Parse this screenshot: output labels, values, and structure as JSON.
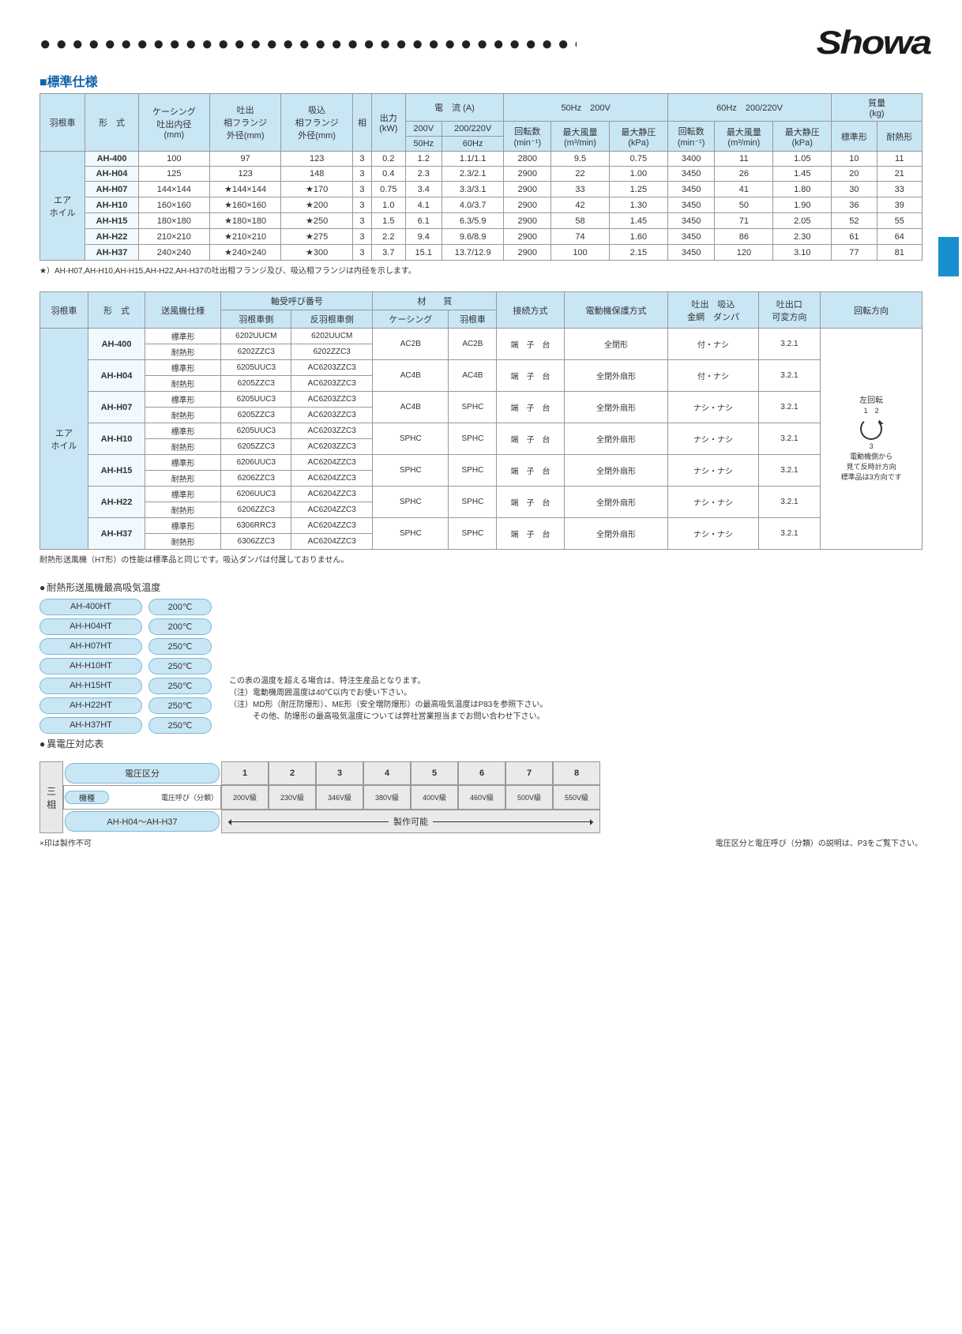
{
  "brand": "Showa",
  "section_title": "標準仕様",
  "table1": {
    "headers": {
      "rotor": "羽根車",
      "model": "形　式",
      "casing": "ケーシング\n吐出内径\n(mm)",
      "discharge_flange": "吐出\n相フランジ\n外径(mm)",
      "suction_flange": "吸込\n相フランジ\n外径(mm)",
      "phase": "相",
      "output": "出力\n(kW)",
      "current": "電　流 (A)",
      "current_200v": "200V",
      "current_200_220v": "200/220V",
      "freq50": "50Hz　200V",
      "freq60": "60Hz　200/220V",
      "rpm": "回転数\n(min⁻¹)",
      "max_air": "最大風量\n(m³/min)",
      "max_sp": "最大静圧\n(kPa)",
      "mass": "質量\n(kg)",
      "mass_std": "標準形",
      "mass_heat": "耐熱形",
      "hz50": "50Hz",
      "hz60": "60Hz"
    },
    "category": "エア\nホイル",
    "rows": [
      {
        "model": "AH-400",
        "casing": "100",
        "df": "97",
        "sf": "123",
        "ph": "3",
        "kw": "0.2",
        "a50": "1.2",
        "a60": "1.1/1.1",
        "r50": "2800",
        "q50": "9.5",
        "p50": "0.75",
        "r60": "3400",
        "q60": "11",
        "p60": "1.05",
        "ms": "10",
        "mh": "11"
      },
      {
        "model": "AH-H04",
        "casing": "125",
        "df": "123",
        "sf": "148",
        "ph": "3",
        "kw": "0.4",
        "a50": "2.3",
        "a60": "2.3/2.1",
        "r50": "2900",
        "q50": "22",
        "p50": "1.00",
        "r60": "3450",
        "q60": "26",
        "p60": "1.45",
        "ms": "20",
        "mh": "21"
      },
      {
        "model": "AH-H07",
        "casing": "144×144",
        "df": "★144×144",
        "sf": "★170",
        "ph": "3",
        "kw": "0.75",
        "a50": "3.4",
        "a60": "3.3/3.1",
        "r50": "2900",
        "q50": "33",
        "p50": "1.25",
        "r60": "3450",
        "q60": "41",
        "p60": "1.80",
        "ms": "30",
        "mh": "33"
      },
      {
        "model": "AH-H10",
        "casing": "160×160",
        "df": "★160×160",
        "sf": "★200",
        "ph": "3",
        "kw": "1.0",
        "a50": "4.1",
        "a60": "4.0/3.7",
        "r50": "2900",
        "q50": "42",
        "p50": "1.30",
        "r60": "3450",
        "q60": "50",
        "p60": "1.90",
        "ms": "36",
        "mh": "39"
      },
      {
        "model": "AH-H15",
        "casing": "180×180",
        "df": "★180×180",
        "sf": "★250",
        "ph": "3",
        "kw": "1.5",
        "a50": "6.1",
        "a60": "6.3/5.9",
        "r50": "2900",
        "q50": "58",
        "p50": "1.45",
        "r60": "3450",
        "q60": "71",
        "p60": "2.05",
        "ms": "52",
        "mh": "55"
      },
      {
        "model": "AH-H22",
        "casing": "210×210",
        "df": "★210×210",
        "sf": "★275",
        "ph": "3",
        "kw": "2.2",
        "a50": "9.4",
        "a60": "9.6/8.9",
        "r50": "2900",
        "q50": "74",
        "p50": "1.60",
        "r60": "3450",
        "q60": "86",
        "p60": "2.30",
        "ms": "61",
        "mh": "64"
      },
      {
        "model": "AH-H37",
        "casing": "240×240",
        "df": "★240×240",
        "sf": "★300",
        "ph": "3",
        "kw": "3.7",
        "a50": "15.1",
        "a60": "13.7/12.9",
        "r50": "2900",
        "q50": "100",
        "p50": "2.15",
        "r60": "3450",
        "q60": "120",
        "p60": "3.10",
        "ms": "77",
        "mh": "81"
      }
    ],
    "note": "★）AH-H07,AH-H10,AH-H15,AH-H22,AH-H37の吐出相フランジ及び、吸込相フランジは内径を示します。"
  },
  "table2": {
    "headers": {
      "rotor": "羽根車",
      "model": "形　式",
      "fan_spec": "送風機仕様",
      "bearing": "軸受呼び番号",
      "bearing_rotor": "羽根車側",
      "bearing_anti": "反羽根車側",
      "material": "材　　質",
      "mat_casing": "ケーシング",
      "mat_rotor": "羽根車",
      "conn": "接続方式",
      "protect": "電動機保護方式",
      "damper": "吐出　吸込\n金網　ダンパ",
      "direction": "吐出口\n可変方向",
      "rotation": "回転方向"
    },
    "category": "エア\nホイル",
    "spec_std": "標準形",
    "spec_heat": "耐熱形",
    "rows": [
      {
        "model": "AH-400",
        "b1s": "6202UUCM",
        "b2s": "6202UUCM",
        "b1h": "6202ZZC3",
        "b2h": "6202ZZC3",
        "mc": "AC2B",
        "mr": "AC2B",
        "conn": "端　子　台",
        "prot": "全閉形",
        "damp": "付・ナシ",
        "dir": "3.2.1"
      },
      {
        "model": "AH-H04",
        "b1s": "6205UUC3",
        "b2s": "AC6203ZZC3",
        "b1h": "6205ZZC3",
        "b2h": "AC6203ZZC3",
        "mc": "AC4B",
        "mr": "AC4B",
        "conn": "端　子　台",
        "prot": "全閉外扇形",
        "damp": "付・ナシ",
        "dir": "3.2.1"
      },
      {
        "model": "AH-H07",
        "b1s": "6205UUC3",
        "b2s": "AC6203ZZC3",
        "b1h": "6205ZZC3",
        "b2h": "AC6203ZZC3",
        "mc": "AC4B",
        "mr": "SPHC",
        "conn": "端　子　台",
        "prot": "全閉外扇形",
        "damp": "ナシ・ナシ",
        "dir": "3.2.1"
      },
      {
        "model": "AH-H10",
        "b1s": "6205UUC3",
        "b2s": "AC6203ZZC3",
        "b1h": "6205ZZC3",
        "b2h": "AC6203ZZC3",
        "mc": "SPHC",
        "mr": "SPHC",
        "conn": "端　子　台",
        "prot": "全閉外扇形",
        "damp": "ナシ・ナシ",
        "dir": "3.2.1"
      },
      {
        "model": "AH-H15",
        "b1s": "6206UUC3",
        "b2s": "AC6204ZZC3",
        "b1h": "6206ZZC3",
        "b2h": "AC6204ZZC3",
        "mc": "SPHC",
        "mr": "SPHC",
        "conn": "端　子　台",
        "prot": "全閉外扇形",
        "damp": "ナシ・ナシ",
        "dir": "3.2.1"
      },
      {
        "model": "AH-H22",
        "b1s": "6206UUC3",
        "b2s": "AC6204ZZC3",
        "b1h": "6206ZZC3",
        "b2h": "AC6204ZZC3",
        "mc": "SPHC",
        "mr": "SPHC",
        "conn": "端　子　台",
        "prot": "全閉外扇形",
        "damp": "ナシ・ナシ",
        "dir": "3.2.1"
      },
      {
        "model": "AH-H37",
        "b1s": "6306RRC3",
        "b2s": "AC6204ZZC3",
        "b1h": "6306ZZC3",
        "b2h": "AC6204ZZC3",
        "mc": "SPHC",
        "mr": "SPHC",
        "conn": "端　子　台",
        "prot": "全閉外扇形",
        "damp": "ナシ・ナシ",
        "dir": "3.2.1"
      }
    ],
    "rotation_label": "左回転",
    "rotation_note1": "電動機側から\n見て反時計方向",
    "rotation_note2": "標準品は3方向です",
    "note": "耐熱形送風機（HT形）の性能は標準品と同じです。吸込ダンパは付属しておりません。"
  },
  "temp_section": {
    "title": "耐熱形送風機最高吸気温度",
    "rows": [
      {
        "model": "AH-400HT",
        "temp": "200℃"
      },
      {
        "model": "AH-H04HT",
        "temp": "200℃"
      },
      {
        "model": "AH-H07HT",
        "temp": "250℃"
      },
      {
        "model": "AH-H10HT",
        "temp": "250℃"
      },
      {
        "model": "AH-H15HT",
        "temp": "250℃"
      },
      {
        "model": "AH-H22HT",
        "temp": "250℃"
      },
      {
        "model": "AH-H37HT",
        "temp": "250℃"
      }
    ],
    "notes": [
      "この表の温度を超える場合は、特注生産品となります。",
      "（注）電動機周囲温度は40℃以内でお使い下さい。",
      "（注）MD形（耐圧防爆形）、ME形（安全増防爆形）の最高吸気温度はP83を参照下さい。",
      "　　　その他、防爆形の最高吸気温度については弊社営業担当までお問い合わせ下さい。"
    ]
  },
  "voltage_section": {
    "title": "異電圧対応表",
    "phase_label": "三\n相",
    "div_label": "電圧区分",
    "class_label": "電圧呼び（分類）",
    "model_label": "機種",
    "model_range": "AH-H04～AH-H37",
    "nums": [
      "1",
      "2",
      "3",
      "4",
      "5",
      "6",
      "7",
      "8"
    ],
    "classes": [
      "200V級",
      "230V級",
      "346V級",
      "380V級",
      "400V級",
      "460V級",
      "500V級",
      "550V級"
    ],
    "span_label": "製作可能",
    "foot_left": "×印は製作不可",
    "foot_right": "電圧区分と電圧呼び（分類）の説明は、P3をご覧下さい。"
  },
  "colors": {
    "header_bg": "#c9e6f5",
    "model_bg": "#f0f9fe",
    "border": "#999999",
    "title": "#1264a8",
    "blue_tab": "#1890d0"
  }
}
